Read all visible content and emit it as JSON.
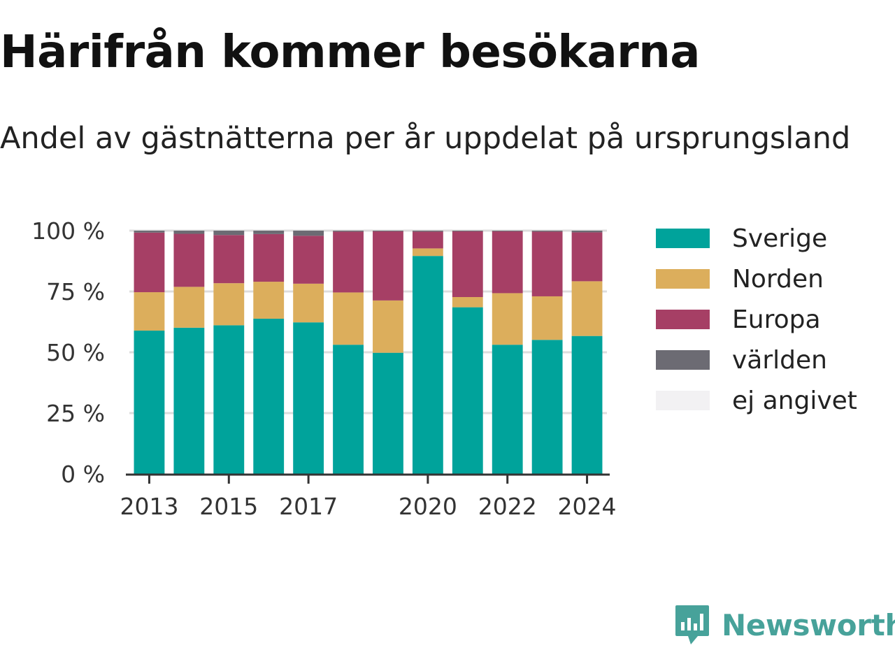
{
  "header": {
    "title": "Härifrån kommer besökarna",
    "subtitle": "Andel av gästnätterna per år uppdelat på ursprungsland"
  },
  "chart_data": {
    "type": "bar",
    "stacked": true,
    "categories": [
      "2013",
      "2014",
      "2015",
      "2016",
      "2017",
      "2018",
      "2019",
      "2020",
      "2021",
      "2022",
      "2023",
      "2024"
    ],
    "x_tick_labels": [
      "2013",
      "2015",
      "2017",
      "2020",
      "2022",
      "2024"
    ],
    "y_tick_labels": [
      "0 %",
      "25 %",
      "50 %",
      "75 %",
      "100 %"
    ],
    "y_ticks": [
      0,
      25,
      50,
      75,
      100
    ],
    "ylim": [
      0,
      100
    ],
    "grid": true,
    "legend_position": "right",
    "series": [
      {
        "name": "Sverige",
        "color": "#00a39b",
        "values": [
          58.9,
          60.1,
          61.1,
          63.8,
          62.3,
          53.1,
          49.8,
          89.6,
          68.5,
          53.1,
          55.1,
          56.7
        ]
      },
      {
        "name": "Norden",
        "color": "#dcae5c",
        "values": [
          15.8,
          16.8,
          17.3,
          15.2,
          15.9,
          21.5,
          21.5,
          3.1,
          4.2,
          21.2,
          17.9,
          22.5
        ]
      },
      {
        "name": "Europa",
        "color": "#a63f65",
        "values": [
          24.5,
          21.8,
          19.8,
          19.6,
          19.7,
          25.0,
          28.4,
          6.9,
          27.0,
          25.4,
          26.6,
          20.1
        ]
      },
      {
        "name": "världen",
        "color": "#6c6b73",
        "values": [
          0.8,
          1.3,
          1.8,
          1.4,
          2.1,
          0.4,
          0.3,
          0.4,
          0.3,
          0.3,
          0.4,
          0.7
        ]
      },
      {
        "name": "ej angivet",
        "color": "#f2f1f3",
        "values": [
          0,
          0,
          0,
          0,
          0,
          0,
          0,
          0,
          0,
          0,
          0,
          0
        ]
      }
    ]
  },
  "logo": {
    "text": "Newsworthy",
    "color": "#47a29a"
  }
}
